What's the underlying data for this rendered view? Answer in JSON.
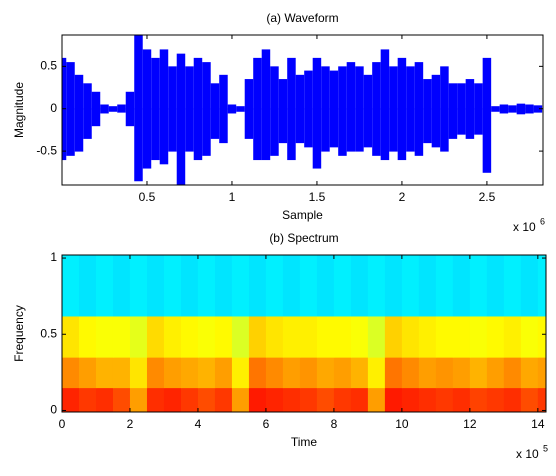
{
  "chart_data": [
    {
      "type": "waveform",
      "title": "(a) Waveform",
      "x_label": "Sample",
      "y_label": "Magnitude",
      "x_exponent_base": "x 10",
      "x_exponent": "6",
      "x": [
        0,
        0.05,
        0.1,
        0.15,
        0.2,
        0.25,
        0.3,
        0.35,
        0.4,
        0.45,
        0.5,
        0.55,
        0.6,
        0.65,
        0.7,
        0.75,
        0.8,
        0.85,
        0.9,
        0.95,
        1.0,
        1.05,
        1.1,
        1.15,
        1.2,
        1.25,
        1.3,
        1.35,
        1.4,
        1.45,
        1.5,
        1.55,
        1.6,
        1.65,
        1.7,
        1.75,
        1.8,
        1.85,
        1.9,
        1.95,
        2.0,
        2.05,
        2.1,
        2.15,
        2.2,
        2.25,
        2.3,
        2.35,
        2.4,
        2.45,
        2.5,
        2.55,
        2.6,
        2.65,
        2.7,
        2.75,
        2.8
      ],
      "series": [
        {
          "color": "#0000ff",
          "values": [
            0.6,
            0.55,
            0.4,
            0.3,
            0.2,
            0.05,
            0.03,
            0.05,
            0.2,
            0.87,
            0.7,
            0.6,
            0.7,
            0.5,
            0.65,
            0.5,
            0.6,
            0.55,
            0.3,
            0.4,
            0.05,
            0.03,
            0.35,
            0.6,
            0.7,
            0.5,
            0.35,
            0.6,
            0.4,
            0.45,
            0.6,
            0.5,
            0.45,
            0.5,
            0.55,
            0.5,
            0.4,
            0.55,
            0.7,
            0.5,
            0.6,
            0.5,
            0.55,
            0.35,
            0.4,
            0.5,
            0.3,
            0.3,
            0.35,
            0.3,
            0.6,
            0.03,
            0.05,
            0.04,
            0.06,
            0.05,
            0.04
          ]
        },
        {
          "color": "#0000ff",
          "values": [
            -0.6,
            -0.55,
            -0.5,
            -0.35,
            -0.2,
            -0.05,
            -0.03,
            -0.04,
            -0.2,
            -0.85,
            -0.7,
            -0.6,
            -0.65,
            -0.5,
            -0.9,
            -0.5,
            -0.6,
            -0.55,
            -0.35,
            -0.4,
            -0.05,
            -0.03,
            -0.35,
            -0.6,
            -0.6,
            -0.55,
            -0.4,
            -0.6,
            -0.4,
            -0.45,
            -0.7,
            -0.5,
            -0.45,
            -0.55,
            -0.5,
            -0.5,
            -0.45,
            -0.55,
            -0.6,
            -0.5,
            -0.6,
            -0.5,
            -0.55,
            -0.4,
            -0.45,
            -0.5,
            -0.35,
            -0.3,
            -0.35,
            -0.3,
            -0.75,
            -0.03,
            -0.05,
            -0.04,
            -0.06,
            -0.05,
            -0.04
          ]
        }
      ],
      "xlim": [
        0,
        2.83
      ],
      "xticks": [
        0.5,
        1,
        1.5,
        2,
        2.5
      ],
      "ylim": [
        -0.9,
        0.87
      ],
      "yticks": [
        -0.5,
        0,
        0.5
      ]
    },
    {
      "type": "heatmap",
      "title": "(b) Spectrum",
      "x_label": "Time",
      "y_label": "Frequency",
      "x_exponent_base": "x 10",
      "x_exponent": "5",
      "colormap": "jet",
      "xbins": [
        0,
        0.5,
        1,
        1.5,
        2,
        2.5,
        3,
        3.5,
        4,
        4.5,
        5,
        5.5,
        6,
        6.5,
        7,
        7.5,
        8,
        8.5,
        9,
        9.5,
        10,
        10.5,
        11,
        11.5,
        12,
        12.5,
        13,
        13.5,
        14,
        14.24
      ],
      "ybins": [
        -0.01,
        0.15,
        0.35,
        0.62,
        1.02
      ],
      "z": [
        [
          0.84,
          0.82,
          0.83,
          0.8,
          0.72,
          0.83,
          0.84,
          0.82,
          0.8,
          0.82,
          0.72,
          0.85,
          0.84,
          0.83,
          0.82,
          0.8,
          0.82,
          0.83,
          0.72,
          0.85,
          0.84,
          0.83,
          0.82,
          0.83,
          0.81,
          0.82,
          0.83,
          0.8,
          0.82
        ],
        [
          0.74,
          0.72,
          0.7,
          0.7,
          0.65,
          0.74,
          0.72,
          0.71,
          0.7,
          0.72,
          0.64,
          0.76,
          0.74,
          0.72,
          0.73,
          0.71,
          0.72,
          0.7,
          0.64,
          0.76,
          0.74,
          0.72,
          0.73,
          0.72,
          0.7,
          0.72,
          0.74,
          0.71,
          0.72
        ],
        [
          0.65,
          0.63,
          0.62,
          0.62,
          0.6,
          0.66,
          0.64,
          0.63,
          0.62,
          0.63,
          0.59,
          0.67,
          0.65,
          0.64,
          0.64,
          0.63,
          0.63,
          0.62,
          0.59,
          0.67,
          0.65,
          0.64,
          0.63,
          0.63,
          0.62,
          0.63,
          0.64,
          0.62,
          0.63
        ],
        [
          0.36,
          0.35,
          0.36,
          0.35,
          0.36,
          0.35,
          0.36,
          0.35,
          0.36,
          0.35,
          0.36,
          0.35,
          0.36,
          0.35,
          0.36,
          0.35,
          0.36,
          0.35,
          0.36,
          0.35,
          0.36,
          0.35,
          0.36,
          0.35,
          0.36,
          0.35,
          0.36,
          0.35,
          0.36
        ]
      ],
      "xlim": [
        0,
        14.24
      ],
      "xticks": [
        0,
        2,
        4,
        6,
        8,
        10,
        12,
        14
      ],
      "ylim": [
        -0.01,
        1.02
      ],
      "yticks": [
        0,
        0.5,
        1
      ]
    }
  ]
}
